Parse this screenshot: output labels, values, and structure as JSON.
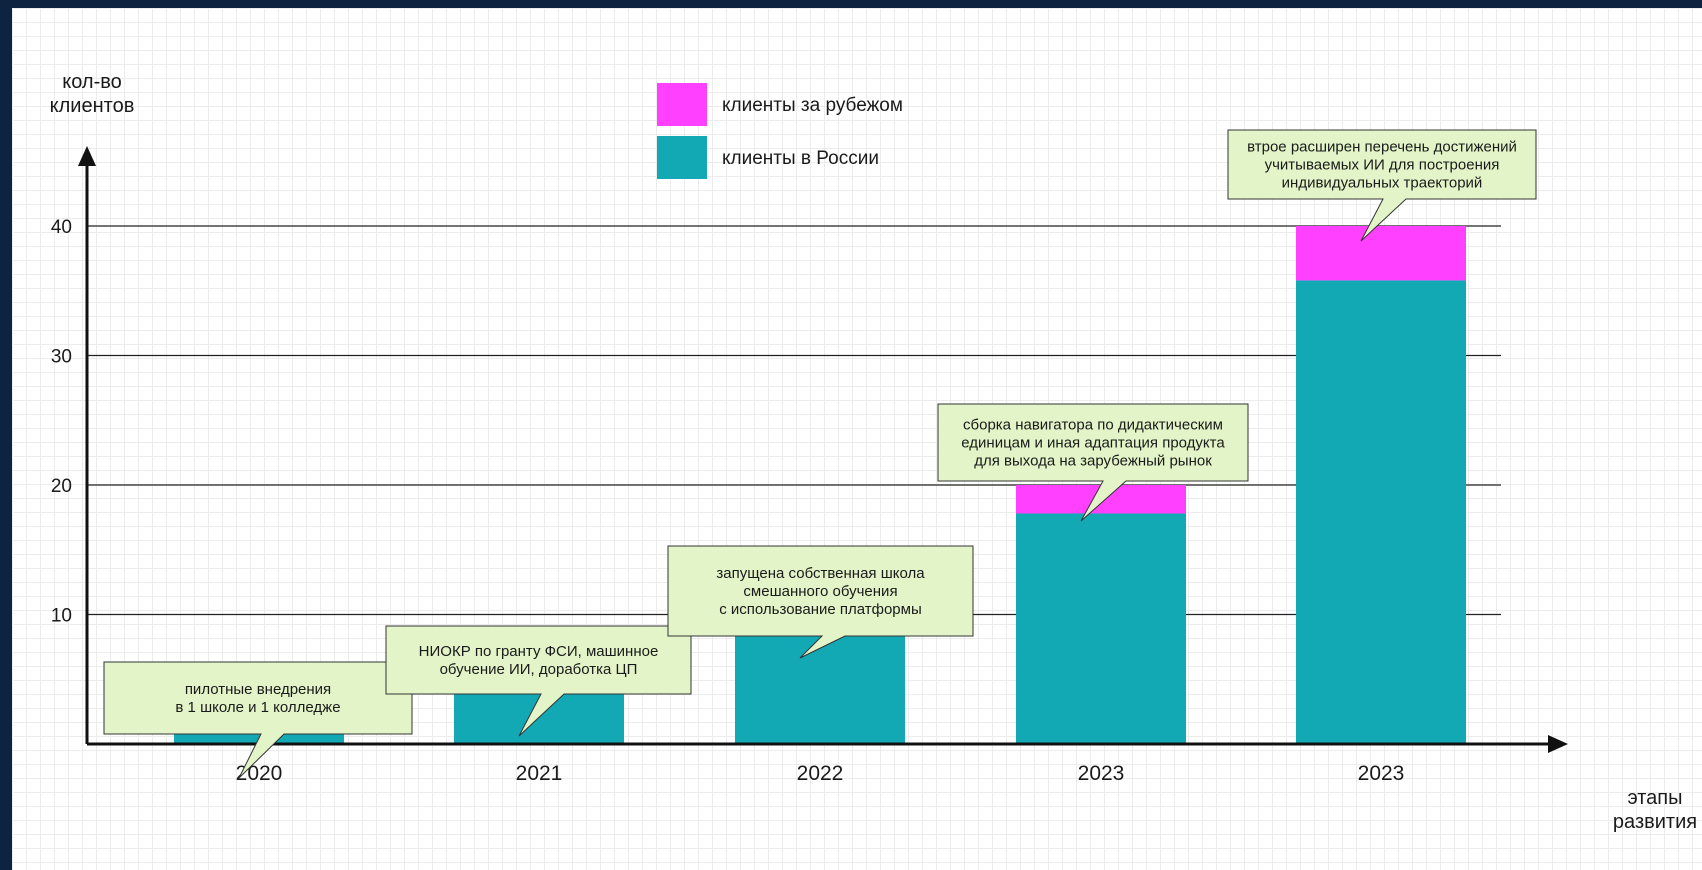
{
  "chart_data": {
    "type": "bar",
    "stacked": true,
    "ylabel": "кол-во\nклиентов",
    "xlabel": "этапы\nразвития",
    "categories": [
      "2020",
      "2021",
      "2022",
      "2023",
      "2023"
    ],
    "yticks": [
      10,
      20,
      30,
      40
    ],
    "ylim": [
      0,
      40
    ],
    "grid": true,
    "legend_position": "top-center",
    "series": [
      {
        "name": "клиенты в России",
        "color": "#12a8b4",
        "values": [
          1.5,
          4.5,
          9.8,
          17.8,
          35.8
        ]
      },
      {
        "name": "клиенты за рубежом",
        "color": "#ff40ff",
        "values": [
          0,
          0,
          0,
          2.2,
          4.2
        ]
      }
    ],
    "annotations": [
      {
        "category_index": 0,
        "text": "пилотные внедрения\nв 1 школе и 1 колледже"
      },
      {
        "category_index": 1,
        "text": "НИОКР по гранту ФСИ, машинное\nобучение ИИ, доработка ЦП"
      },
      {
        "category_index": 2,
        "text": "запущена собственная школа\nсмешанного обучения\nс использование платформы"
      },
      {
        "category_index": 3,
        "text": "сборка навигатора по дидактическим\nединицам и иная адаптация продукта\nдля выхода на зарубежный рынок"
      },
      {
        "category_index": 4,
        "text": "втрое расширен перечень достижений\nучитываемых ИИ для построения\nиндивидуальных траекторий"
      }
    ],
    "colors": {
      "axis": "#111111",
      "gridline": "#222222",
      "callout_fill": "#e3f5c8",
      "callout_stroke": "#333333"
    }
  }
}
